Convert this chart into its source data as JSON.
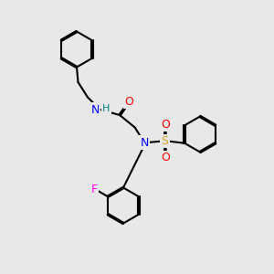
{
  "background_color": "#e8e8e8",
  "bond_color": "#000000",
  "bond_width": 1.5,
  "colors": {
    "C": "#000000",
    "N": "#0000FF",
    "O": "#FF0000",
    "F": "#FF00FF",
    "S": "#DAA520",
    "H": "#008080"
  },
  "font_size": 9,
  "font_size_small": 8
}
